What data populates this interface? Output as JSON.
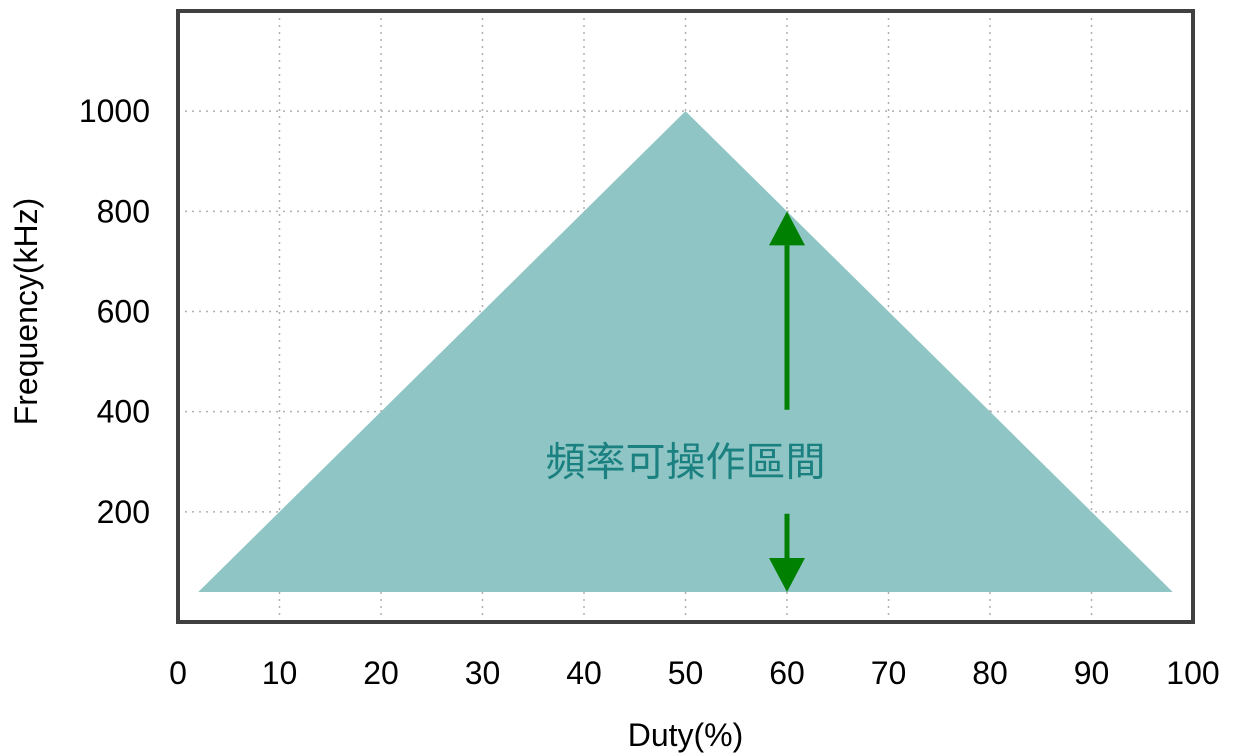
{
  "chart_data": {
    "type": "area",
    "xlabel": "Duty(%)",
    "ylabel": "Frequency(kHz)",
    "xlim": [
      0,
      100
    ],
    "ylim": [
      -20,
      1200
    ],
    "x_ticks": [
      0,
      10,
      20,
      30,
      40,
      50,
      60,
      70,
      80,
      90,
      100
    ],
    "y_ticks": [
      200,
      400,
      600,
      800,
      1000
    ],
    "grid": true,
    "series": [
      {
        "x": [
          2,
          50,
          98
        ],
        "y": [
          40,
          1000,
          40
        ]
      }
    ],
    "annotation": {
      "text": "頻率可操作區間",
      "x_center": 50,
      "y_center": 300,
      "arrow": {
        "x": 60,
        "y_top": 800,
        "y_bottom": 40
      }
    },
    "colors": {
      "fill": "#8fc5c5",
      "arrow": "#008000",
      "annotation_text": "#1a8080",
      "frame": "#404040"
    }
  }
}
